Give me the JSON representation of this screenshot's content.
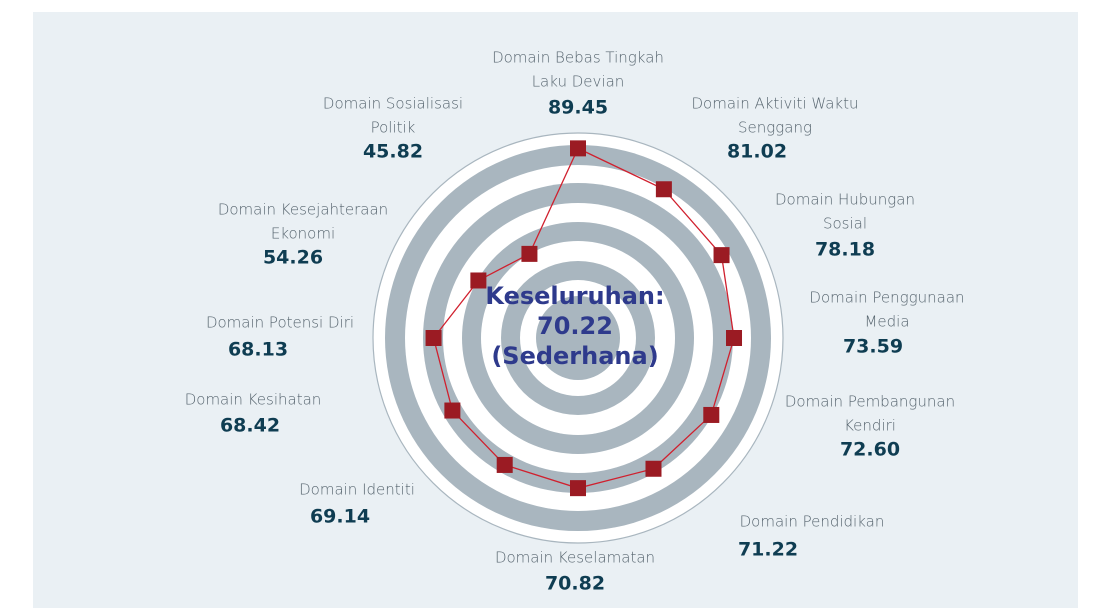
{
  "chart_data": {
    "type": "radar",
    "categories": [
      [
        "Domain Bebas Tingkah",
        "Laku Devian"
      ],
      [
        "Domain Aktiviti Waktu",
        "Senggang"
      ],
      [
        "Domain Hubungan",
        "Sosial"
      ],
      [
        "Domain Penggunaan",
        "Media"
      ],
      [
        "Domain Pembangunan",
        "Kendiri"
      ],
      [
        "Domain Pendidikan"
      ],
      [
        "Domain Keselamatan"
      ],
      [
        "Domain Identiti"
      ],
      [
        "Domain Kesihatan"
      ],
      [
        "Domain Potensi Diri"
      ],
      [
        "Domain Kesejahteraan",
        "Ekonomi"
      ],
      [
        "Domain Sosialisasi",
        "Politik"
      ]
    ],
    "values": [
      89.45,
      81.02,
      78.18,
      73.59,
      72.6,
      71.22,
      70.82,
      69.14,
      68.42,
      68.13,
      54.26,
      45.82
    ],
    "value_labels": [
      "89.45",
      "81.02",
      "78.18",
      "73.59",
      "72.60",
      "71.22",
      "70.82",
      "69.14",
      "68.42",
      "68.13",
      "54.26",
      "45.82"
    ],
    "center_label": [
      "Keseluruhan:",
      "70.22",
      "(Sederhana)"
    ],
    "rlim": [
      0,
      100
    ],
    "color": "#9b1b23",
    "line_color": "#d0202e"
  }
}
